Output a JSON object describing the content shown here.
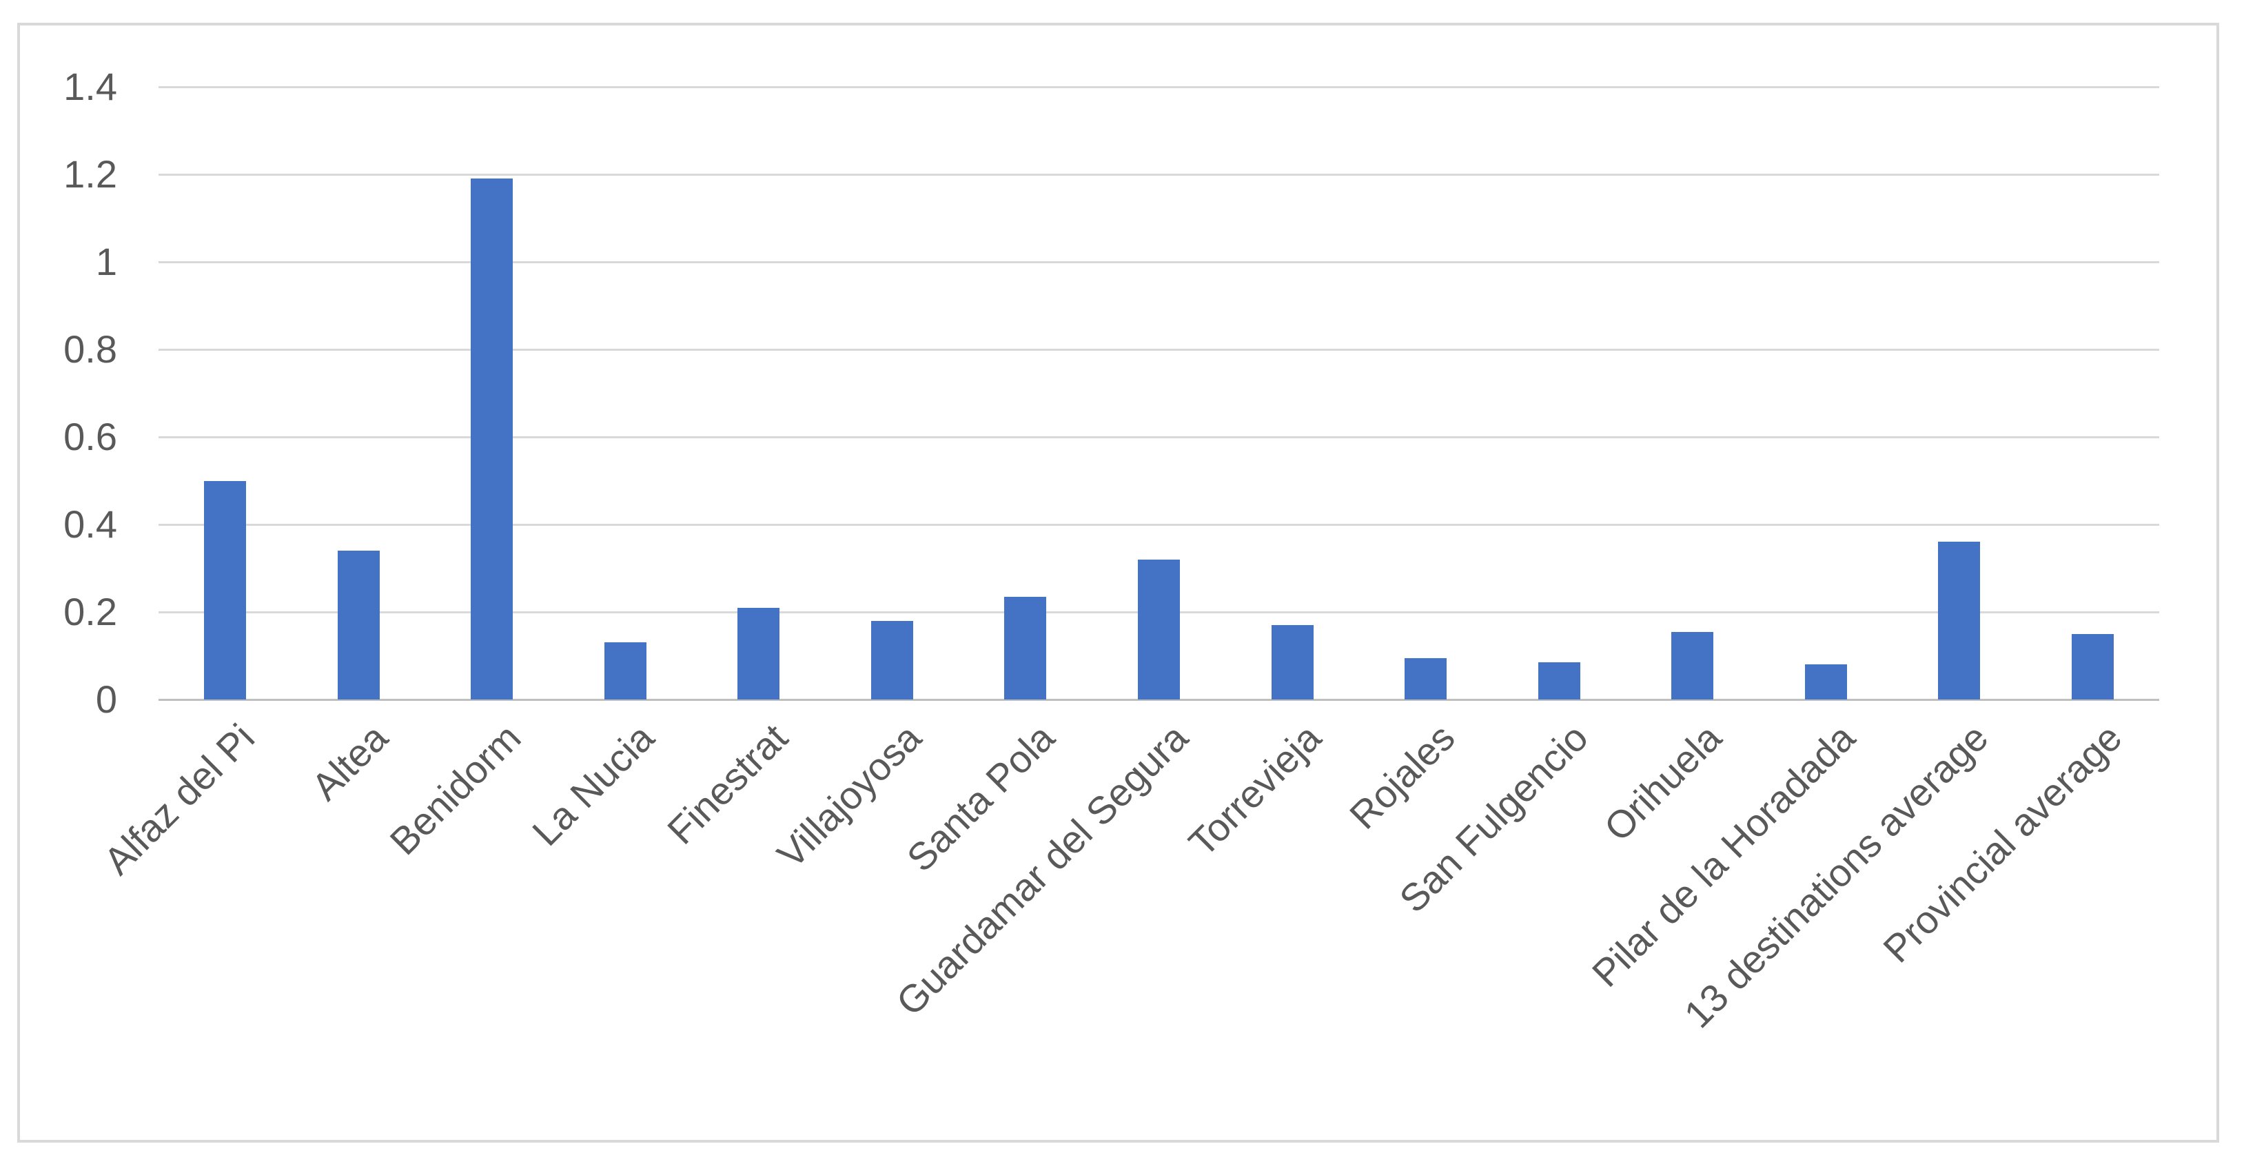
{
  "chart_data": {
    "type": "bar",
    "title": "",
    "xlabel": "",
    "ylabel": "",
    "legend_position": "none",
    "grid": true,
    "bar_color": "#4472C4",
    "ylim": [
      0,
      1.4
    ],
    "categories": [
      "Alfaz del Pi",
      "Altea",
      "Benidorm",
      "La Nucia",
      "Finestrat",
      "Villajoyosa",
      "Santa Pola",
      "Guardamar del Segura",
      "Torrevieja",
      "Rojales",
      "San Fulgencio",
      "Orihuela",
      "Pilar de la Horadada",
      "13 destinations average",
      "Provincial average"
    ],
    "values": [
      0.5,
      0.34,
      1.19,
      0.13,
      0.21,
      0.18,
      0.235,
      0.32,
      0.17,
      0.095,
      0.085,
      0.155,
      0.08,
      0.36,
      0.15
    ],
    "yticks": [
      {
        "value": 0,
        "label": "0"
      },
      {
        "value": 0.2,
        "label": "0.2"
      },
      {
        "value": 0.4,
        "label": "0.4"
      },
      {
        "value": 0.6,
        "label": "0.6"
      },
      {
        "value": 0.8,
        "label": "0.8"
      },
      {
        "value": 1,
        "label": "1"
      },
      {
        "value": 1.2,
        "label": "1.2"
      },
      {
        "value": 1.4,
        "label": "1.4"
      }
    ]
  },
  "colors": {
    "background": "#FFFFFF",
    "chart_border": "#D9D9D9",
    "gridline": "#D9D9D9",
    "axis_line": "#BFBFBF",
    "tick_text": "#595959",
    "bar": "#4472C4"
  }
}
